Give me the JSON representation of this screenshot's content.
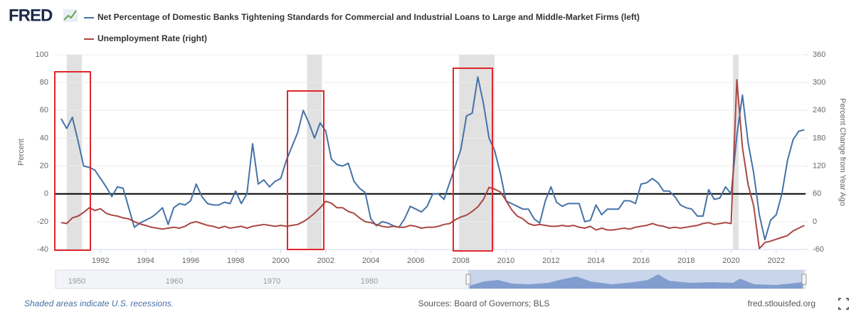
{
  "chart_data": {
    "type": "line",
    "logo": "FRED",
    "y_label": "Percent",
    "y2_label": "Percent Change from Year Ago",
    "x": [
      1990.25,
      1990.5,
      1990.75,
      1991,
      1991.25,
      1991.5,
      1991.75,
      1992,
      1992.25,
      1992.5,
      1992.75,
      1993,
      1993.25,
      1993.5,
      1993.75,
      1994,
      1994.25,
      1994.5,
      1994.75,
      1995,
      1995.25,
      1995.5,
      1995.75,
      1996,
      1996.25,
      1996.5,
      1996.75,
      1997,
      1997.25,
      1997.5,
      1997.75,
      1998,
      1998.25,
      1998.5,
      1998.75,
      1999,
      1999.25,
      1999.5,
      1999.75,
      2000,
      2000.25,
      2000.5,
      2000.75,
      2001,
      2001.25,
      2001.5,
      2001.75,
      2002,
      2002.25,
      2002.5,
      2002.75,
      2003,
      2003.25,
      2003.5,
      2003.75,
      2004,
      2004.25,
      2004.5,
      2004.75,
      2005,
      2005.25,
      2005.5,
      2005.75,
      2006,
      2006.25,
      2006.5,
      2006.75,
      2007,
      2007.25,
      2007.5,
      2007.75,
      2008,
      2008.25,
      2008.5,
      2008.75,
      2009,
      2009.25,
      2009.5,
      2009.75,
      2010,
      2010.25,
      2010.5,
      2010.75,
      2011,
      2011.25,
      2011.5,
      2011.75,
      2012,
      2012.25,
      2012.5,
      2012.75,
      2013,
      2013.25,
      2013.5,
      2013.75,
      2014,
      2014.25,
      2014.5,
      2014.75,
      2015,
      2015.25,
      2015.5,
      2015.75,
      2016,
      2016.25,
      2016.5,
      2016.75,
      2017,
      2017.25,
      2017.5,
      2017.75,
      2018,
      2018.25,
      2018.5,
      2018.75,
      2019,
      2019.25,
      2019.5,
      2019.75,
      2020,
      2020.25,
      2020.5,
      2020.75,
      2021,
      2021.25,
      2021.5,
      2021.75,
      2022,
      2022.25,
      2022.5,
      2022.75,
      2023,
      2023.25
    ],
    "series": [
      {
        "name": "Net Percentage of Domestic Banks Tightening Standards for Commercial and Industrial Loans to Large and Middle-Market Firms (left)",
        "color": "#4572a7",
        "values": [
          54,
          47,
          55,
          38,
          20,
          19,
          17,
          11,
          5,
          -2,
          5,
          4,
          -10,
          -24,
          -21,
          -19,
          -17,
          -14,
          -10,
          -22,
          -10,
          -7,
          -8,
          -5,
          7,
          -2,
          -7,
          -8,
          -8,
          -6,
          -7,
          2,
          -7,
          0,
          36,
          7,
          10,
          5,
          9,
          11,
          24,
          34,
          44,
          60,
          51,
          40,
          51,
          45,
          25,
          21,
          20,
          22,
          9,
          4,
          1,
          -18,
          -23,
          -20,
          -21,
          -23,
          -24,
          -18,
          -9,
          -11,
          -13,
          -9,
          0,
          0,
          -4,
          8,
          20,
          32,
          56,
          58,
          84,
          65,
          40,
          31,
          15,
          -5,
          -7,
          -9,
          -11,
          -11,
          -18,
          -21,
          -5,
          5,
          -6,
          -9,
          -7,
          -7,
          -7,
          -20,
          -19,
          -8,
          -15,
          -11,
          -11,
          -11,
          -5,
          -5,
          -7,
          7,
          8,
          11,
          8,
          2,
          2,
          -2,
          -8,
          -10,
          -11,
          -16,
          -16,
          3,
          -4,
          -3,
          5,
          0,
          42,
          71,
          37,
          15,
          -15,
          -33,
          -19,
          -15,
          0,
          24,
          39,
          45,
          46
        ]
      },
      {
        "name": "Unemployment Rate (right)",
        "color": "#aa4643",
        "axis": "y2",
        "values": [
          -2,
          -4,
          8,
          12,
          20,
          30,
          24,
          28,
          18,
          14,
          12,
          8,
          6,
          0,
          -5,
          -8,
          -12,
          -14,
          -16,
          -14,
          -12,
          -14,
          -10,
          -3,
          0,
          -4,
          -8,
          -10,
          -14,
          -10,
          -14,
          -12,
          -10,
          -14,
          -10,
          -8,
          -6,
          -8,
          -10,
          -8,
          -10,
          -8,
          -6,
          0,
          8,
          18,
          30,
          44,
          40,
          30,
          30,
          22,
          18,
          8,
          0,
          -2,
          -6,
          -10,
          -12,
          -10,
          -12,
          -12,
          -8,
          -10,
          -14,
          -12,
          -12,
          -10,
          -6,
          -4,
          4,
          10,
          14,
          22,
          32,
          48,
          74,
          70,
          64,
          46,
          26,
          12,
          6,
          -4,
          -8,
          -6,
          -8,
          -10,
          -10,
          -8,
          -10,
          -8,
          -12,
          -14,
          -10,
          -18,
          -14,
          -18,
          -18,
          -16,
          -14,
          -16,
          -12,
          -10,
          -8,
          -4,
          -8,
          -10,
          -14,
          -12,
          -14,
          -12,
          -10,
          -8,
          -4,
          -2,
          -6,
          -4,
          -2,
          -4,
          306,
          160,
          80,
          34,
          -58,
          -45,
          -42,
          -38,
          -34,
          -30,
          -20,
          -14,
          -8
        ]
      }
    ],
    "xlim": [
      1990.0,
      2023.3
    ],
    "xticks": [
      1992,
      1994,
      1996,
      1998,
      2000,
      2002,
      2004,
      2006,
      2008,
      2010,
      2012,
      2014,
      2016,
      2018,
      2020,
      2022
    ],
    "ylim": [
      -40,
      100
    ],
    "yticks": [
      -40,
      -20,
      0,
      20,
      40,
      60,
      80,
      100
    ],
    "y2lim": [
      -60,
      360
    ],
    "y2ticks": [
      -60,
      0,
      60,
      120,
      180,
      240,
      300,
      360
    ],
    "grid": true,
    "zero_line": true,
    "recessions": [
      [
        1990.5,
        1991.17
      ],
      [
        2001.17,
        2001.83
      ],
      [
        2007.92,
        2009.5
      ],
      [
        2020.08,
        2020.33
      ]
    ],
    "recession_color": "#e1e1e1",
    "navigator_labels": [
      "1950",
      "1960",
      "1970",
      "1980"
    ],
    "footer_note": "Shaded areas indicate U.S. recessions.",
    "sources": "Sources: Board of Governors; BLS",
    "site": "fred.stlouisfed.org"
  }
}
